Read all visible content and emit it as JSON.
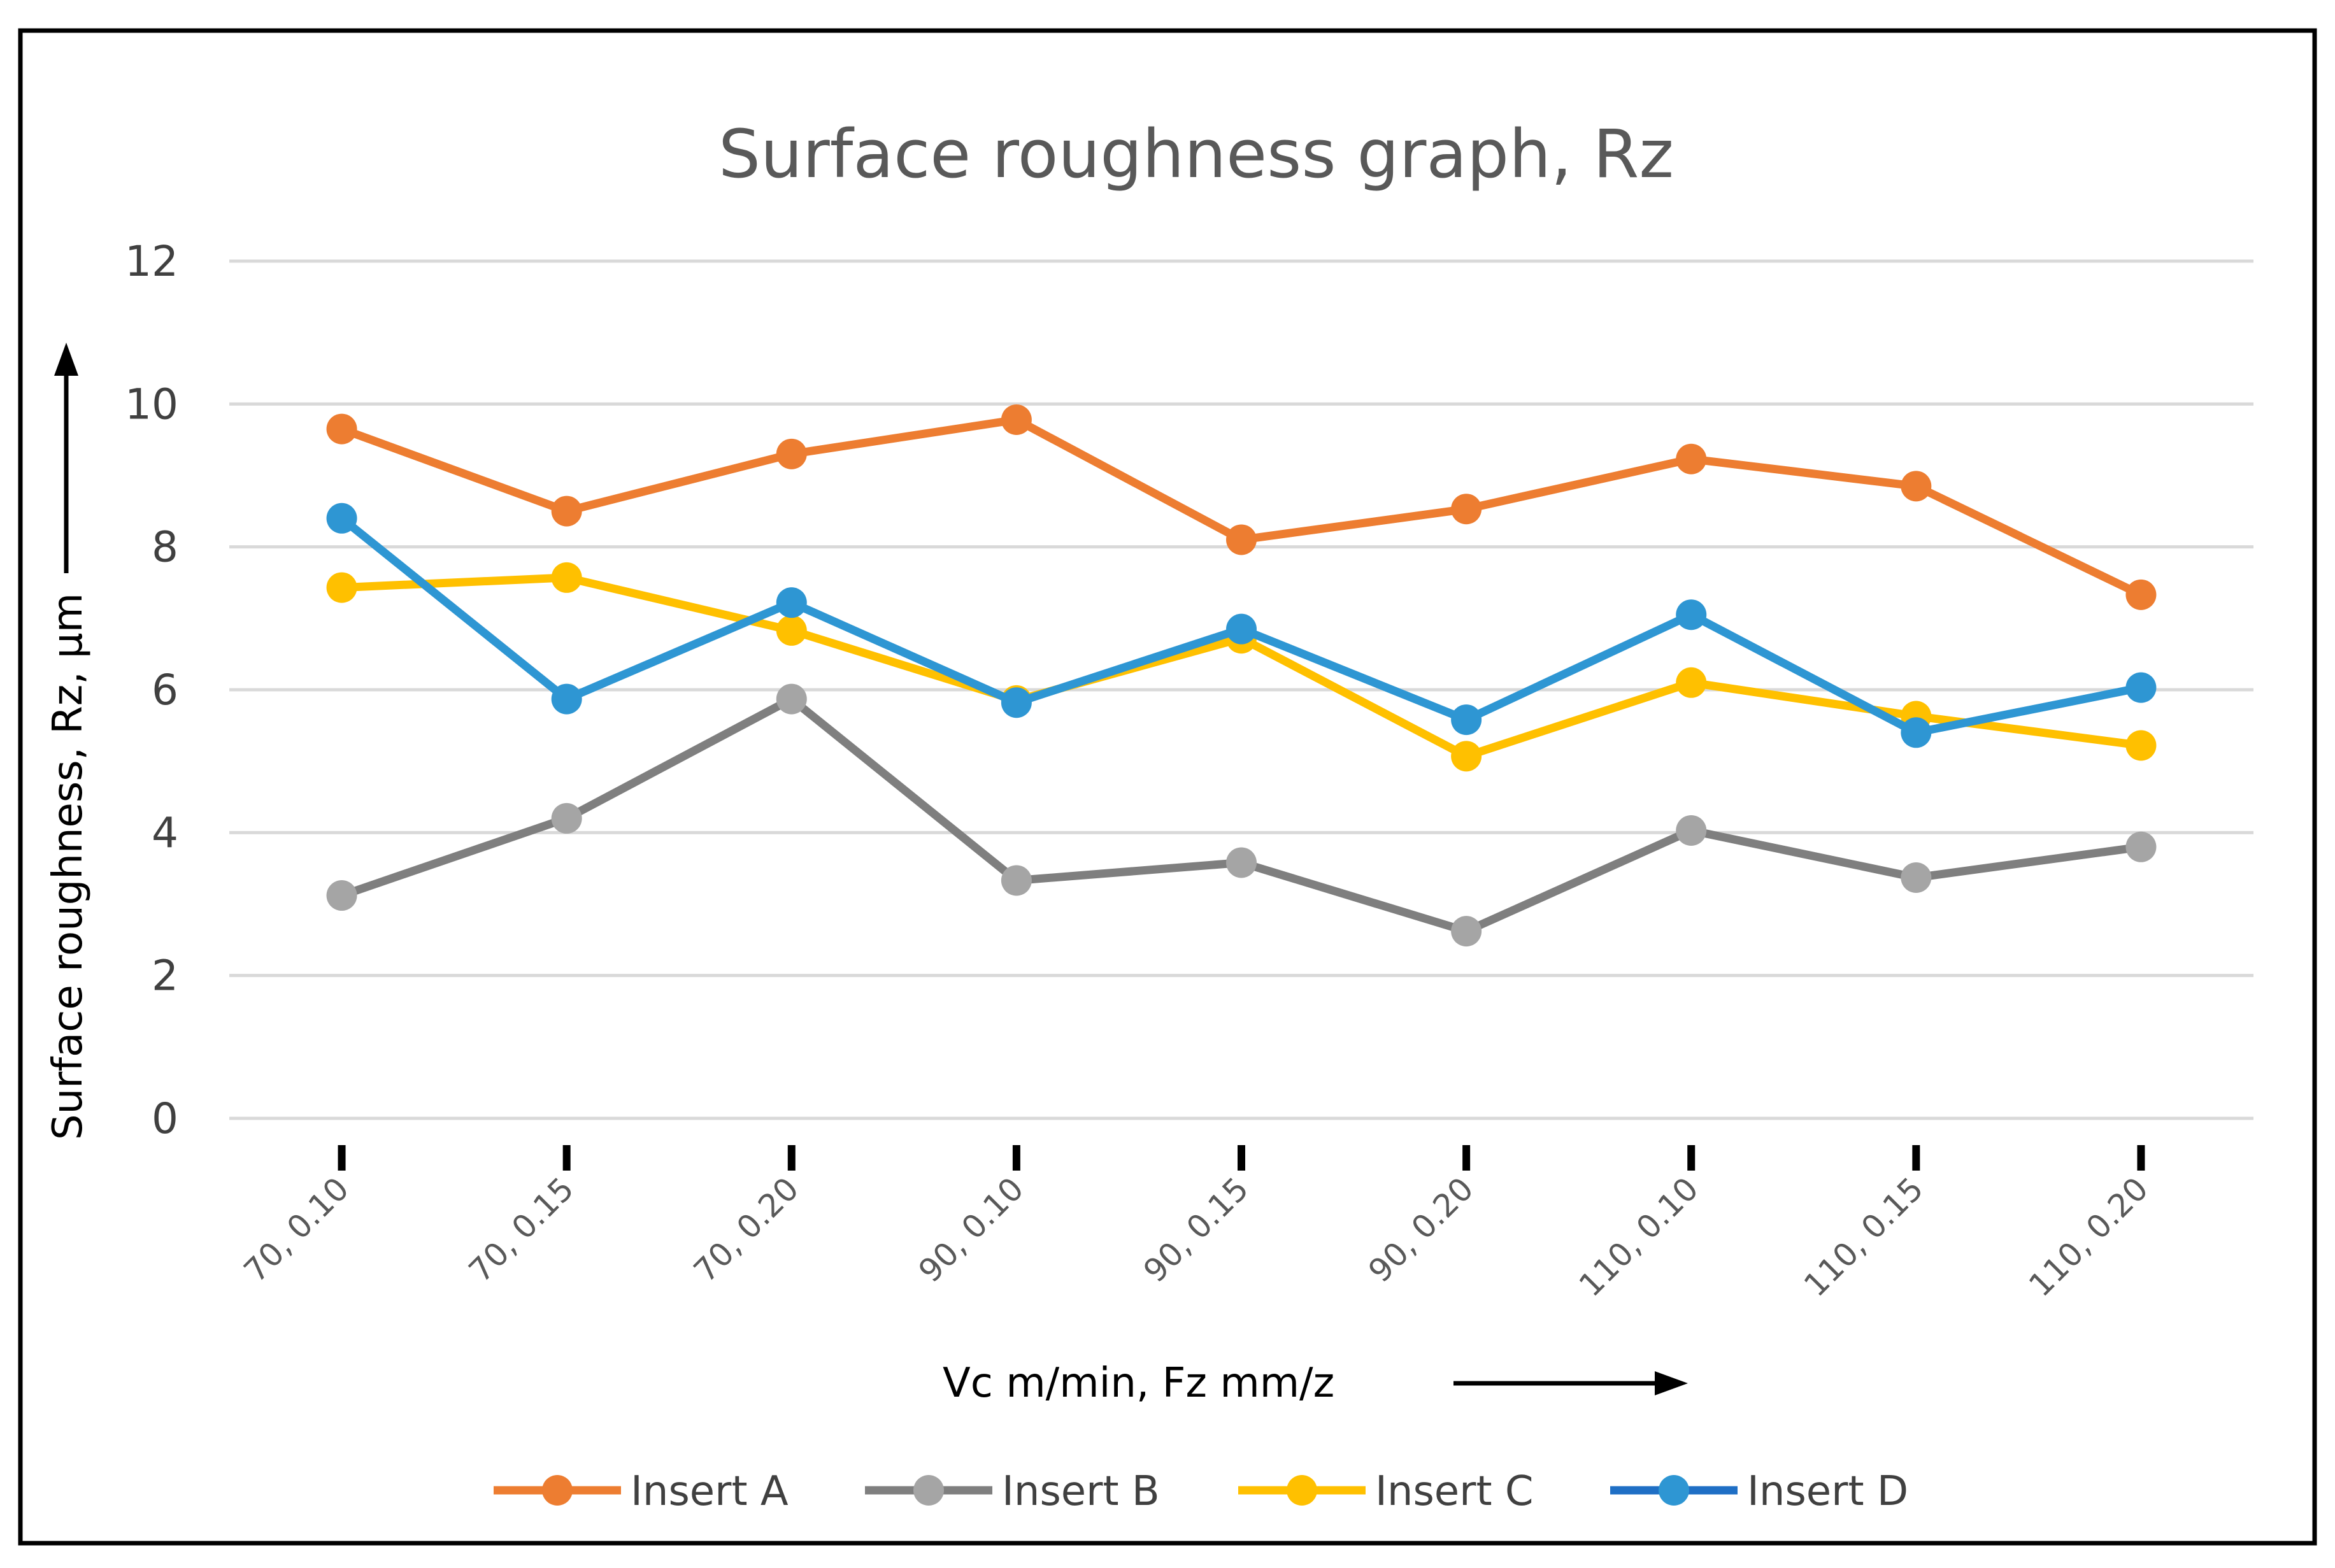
{
  "chart_data": {
    "type": "line",
    "title": "Surface roughness graph, Rz",
    "xlabel": "Vc m/min, Fz mm/z",
    "ylabel": "Surface roughness,  Rz, µm",
    "categories": [
      "70, 0.10",
      "70, 0.15",
      "70, 0.20",
      "90, 0.10",
      "90, 0.15",
      "90, 0.20",
      "110, 0.10",
      "110, 0.15",
      "110, 0.20"
    ],
    "ylim": [
      0,
      12
    ],
    "yticks": [
      0,
      2,
      4,
      6,
      8,
      10,
      12
    ],
    "grid": true,
    "legend_position": "bottom",
    "series": [
      {
        "name": "Insert A",
        "color": "#ED7D31",
        "marker_color": "#ED7D31",
        "values": [
          9.65,
          8.5,
          9.3,
          9.78,
          8.1,
          8.53,
          9.23,
          8.85,
          7.33
        ]
      },
      {
        "name": "Insert B",
        "color": "#7F7F7F",
        "marker_color": "#A5A5A5",
        "values": [
          3.12,
          4.2,
          5.87,
          3.33,
          3.58,
          2.62,
          4.03,
          3.37,
          3.8
        ]
      },
      {
        "name": "Insert C",
        "color": "#FFC000",
        "marker_color": "#FFC000",
        "values": [
          7.43,
          7.57,
          6.83,
          5.85,
          6.72,
          5.07,
          6.1,
          5.63,
          5.22
        ]
      },
      {
        "name": "Insert D",
        "color": "#2E96D3",
        "marker_color": "#2E96D3",
        "legend_color": "#1F6FC5",
        "values": [
          8.4,
          5.87,
          7.22,
          5.82,
          6.85,
          5.58,
          7.05,
          5.4,
          6.03
        ]
      }
    ]
  }
}
